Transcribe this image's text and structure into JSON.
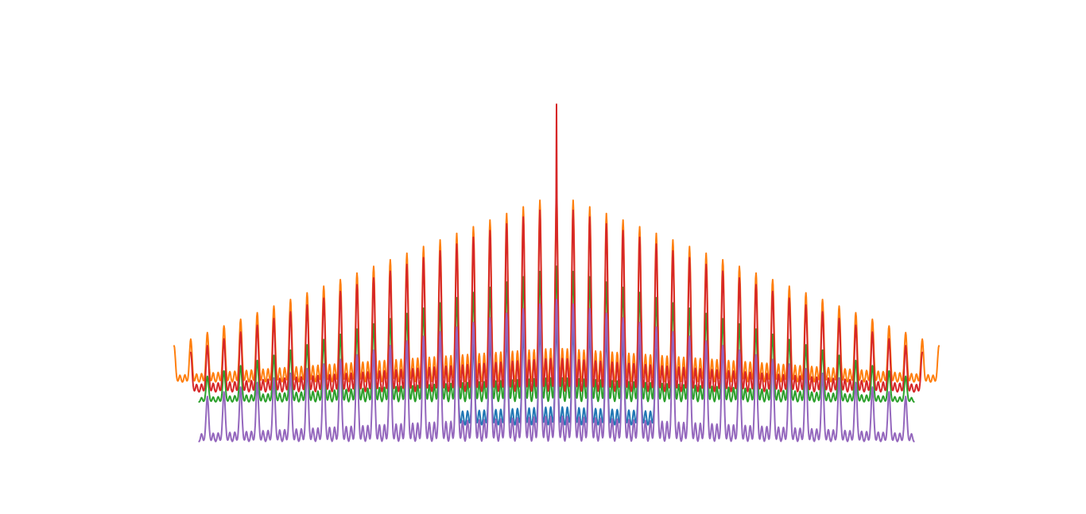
{
  "chart_data": {
    "type": "line",
    "title": "",
    "xlabel": "",
    "ylabel": "",
    "axes_visible": false,
    "grid": false,
    "legend": "none",
    "xlim": [
      -23,
      23
    ],
    "ylim": [
      0,
      1.1
    ],
    "series": [
      {
        "color": "#1f77b4",
        "x_range": [
          -6,
          6
        ],
        "baseline": 0.1,
        "peak_envelope": {
          "center": 0.36,
          "edge": 0.28
        },
        "valley_level": 0.05,
        "period": 1
      },
      {
        "color": "#ff7f0e",
        "x_range": [
          -23,
          23
        ],
        "baseline": 0.2,
        "peak_envelope": {
          "center": 0.75,
          "edge": 0.29
        },
        "valley_level": 0.18,
        "period": 1
      },
      {
        "color": "#2ca02c",
        "x_range": [
          -21.5,
          21.5
        ],
        "baseline": 0.13,
        "peak_envelope": {
          "center": 0.53,
          "edge": 0.19
        },
        "valley_level": 0.12,
        "period": 1
      },
      {
        "color": "#d62728",
        "x_range": [
          -22,
          22
        ],
        "baseline": 0.15,
        "peak_envelope": {
          "center": 0.72,
          "edge": 0.27
        },
        "valley_level": 0.15,
        "period": 1,
        "central_spike": 1.02
      },
      {
        "color": "#9467bd",
        "x_range": [
          -21.5,
          21.5
        ],
        "baseline": 0.03,
        "peak_envelope": {
          "center": 0.43,
          "edge": 0.13
        },
        "valley_level": 0.0,
        "period": 1
      }
    ]
  }
}
